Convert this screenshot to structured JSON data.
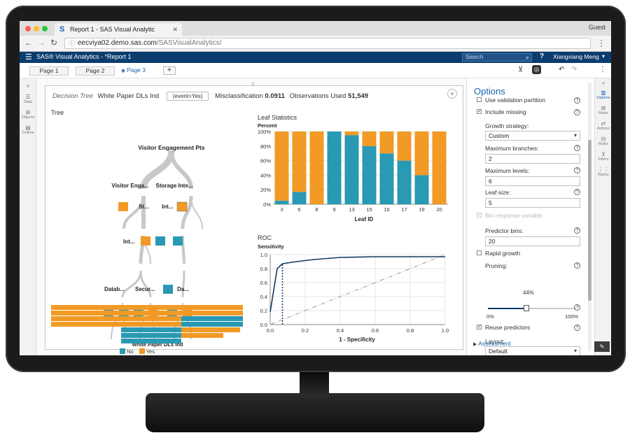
{
  "browser": {
    "tab_title": "Report 1 - SAS Visual Analytic",
    "tab_icon": "S",
    "profile": "Guest",
    "url_host": "eecviya02.demo.sas.com",
    "url_path": "/SASVisualAnalytics/"
  },
  "app": {
    "title": "SAS® Visual Analytics - *Report 1",
    "search_placeholder": "Search",
    "user": "Xiangxiang Meng"
  },
  "pages": [
    {
      "label": "Page 1"
    },
    {
      "label": "Page 2"
    },
    {
      "label": "Page 3"
    }
  ],
  "left_rail": [
    {
      "label": "Data",
      "icon": "database-icon"
    },
    {
      "label": "Objects",
      "icon": "objects-icon"
    },
    {
      "label": "Outline",
      "icon": "outline-icon"
    }
  ],
  "right_rail": [
    {
      "label": "Options",
      "icon": "options-icon"
    },
    {
      "label": "Roles",
      "icon": "roles-icon"
    },
    {
      "label": "Actions",
      "icon": "actions-icon"
    },
    {
      "label": "Rules",
      "icon": "rules-icon"
    },
    {
      "label": "Filters",
      "icon": "filter-icon"
    },
    {
      "label": "Ranks",
      "icon": "ranks-icon"
    }
  ],
  "object": {
    "type": "Decision Tree",
    "target": "White Paper DLs Ind",
    "event": "(event=Yes)",
    "misclass_label": "Misclassification",
    "misclass_value": "0.0911",
    "obs_label": "Observations Used",
    "obs_value": "51,549"
  },
  "tree": {
    "title": "Tree",
    "root": "Visitor Engagement Pts",
    "level1": [
      "Visitor Enga...",
      "Storage Inte..."
    ],
    "level2": [
      "St...",
      "Int..."
    ],
    "level3": [
      "Int..."
    ],
    "level4": [
      "Datab...",
      "Secur...",
      "Da..."
    ],
    "legend_title": "White Paper DLs Ind",
    "legend": [
      "No",
      "Yes"
    ]
  },
  "colors": {
    "no": "#2a99b3",
    "yes": "#f19a25",
    "accent": "#1a64b0",
    "appbar": "#0b3c6e"
  },
  "chart_data": [
    {
      "type": "bar",
      "title": "Leaf Statistics",
      "ylabel": "Percent",
      "xlabel": "Leaf ID",
      "categories": [
        "3",
        "6",
        "8",
        "9",
        "13",
        "15",
        "16",
        "17",
        "19",
        "20"
      ],
      "ylim": [
        0,
        100
      ],
      "yticks": [
        "0%",
        "20%",
        "40%",
        "60%",
        "80%",
        "100%"
      ],
      "stacked": true,
      "series": [
        {
          "name": "No",
          "values": [
            5,
            17,
            0,
            100,
            95,
            80,
            70,
            60,
            40,
            0
          ]
        },
        {
          "name": "Yes",
          "values": [
            95,
            83,
            100,
            0,
            5,
            20,
            30,
            40,
            60,
            100
          ]
        }
      ]
    },
    {
      "type": "line",
      "title": "ROC",
      "xlabel": "1 - Specificity",
      "ylabel": "Sensitivity",
      "xlim": [
        0,
        1
      ],
      "ylim": [
        0,
        1
      ],
      "xticks": [
        "0.0",
        "0.2",
        "0.4",
        "0.6",
        "0.8",
        "1.0"
      ],
      "yticks": [
        "0.0",
        "0.2",
        "0.4",
        "0.6",
        "0.8",
        "1.0"
      ],
      "series": [
        {
          "values": [
            [
              0,
              0.18
            ],
            [
              0.04,
              0.8
            ],
            [
              0.07,
              0.87
            ],
            [
              0.15,
              0.9
            ],
            [
              0.25,
              0.93
            ],
            [
              0.4,
              0.96
            ],
            [
              0.6,
              0.97
            ],
            [
              1,
              0.97
            ]
          ]
        }
      ],
      "cutoff": [
        [
          0.07,
          0
        ],
        [
          0.07,
          0.87
        ]
      ],
      "reference": [
        [
          0,
          0
        ],
        [
          1,
          1
        ]
      ]
    }
  ],
  "leaf_stats_title": "Leaf Statistics",
  "roc_title": "ROC",
  "options": {
    "title": "Options",
    "use_validation": "Use validation partition",
    "include_missing": "Include missing",
    "growth_label": "Growth strategy:",
    "growth_value": "Custom",
    "max_branches_label": "Maximum branches:",
    "max_branches": "2",
    "max_levels_label": "Maximum levels:",
    "max_levels": "6",
    "leaf_size_label": "Leaf size:",
    "leaf_size": "5",
    "bin_response": "Bin response variable",
    "predictor_bins_label": "Predictor bins:",
    "predictor_bins": "20",
    "rapid_growth": "Rapid growth",
    "pruning_label": "Pruning:",
    "pruning_value": "44%",
    "pruning_fraction": 0.44,
    "pruning_min": "0%",
    "pruning_max": "100%",
    "reuse_predictors": "Reuse predictors",
    "layout_label": "Layout:",
    "layout_value": "Default",
    "assessment": "Assessment"
  }
}
